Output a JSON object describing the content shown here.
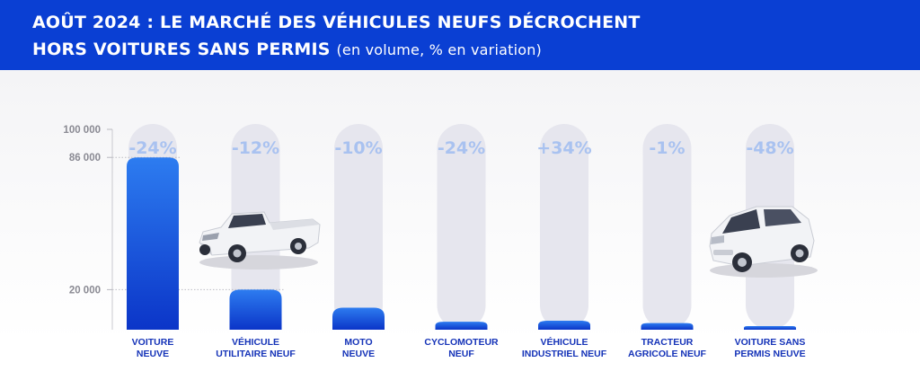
{
  "header": {
    "title_line1": "AOÛT 2024 : LE MARCHÉ DES VÉHICULES NEUFS DÉCROCHENT",
    "title_line2": "HORS VOITURES SANS PERMIS",
    "subtitle": "(en volume, % en variation)"
  },
  "colors": {
    "header_bg": "#0a3fd3",
    "bar_top": "#2d7cf0",
    "bar_bottom": "#0b35c8",
    "pill": "#e6e6ee",
    "pct_text": "#a9c2f0",
    "category_text": "#1533b8",
    "tick_text": "#8a8a93"
  },
  "icons": {
    "pickup": "pickup-truck-icon",
    "microcar": "microcar-icon"
  },
  "chart_data": {
    "type": "bar",
    "title": "AOÛT 2024 : LE MARCHÉ DES VÉHICULES NEUFS DÉCROCHENT HORS VOITURES SANS PERMIS",
    "subtitle": "(en volume, % en variation)",
    "xlabel": "",
    "ylabel": "",
    "ylim": [
      0,
      100000
    ],
    "yticks": [
      {
        "value": 100000,
        "label": "100 000"
      },
      {
        "value": 86000,
        "label": "86 000"
      },
      {
        "value": 20000,
        "label": "20 000"
      }
    ],
    "grid": false,
    "legend": "none",
    "categories": [
      {
        "line1": "VOITURE",
        "line2": "NEUVE"
      },
      {
        "line1": "VÉHICULE",
        "line2": "UTILITAIRE NEUF"
      },
      {
        "line1": "MOTO",
        "line2": "NEUVE"
      },
      {
        "line1": "CYCLOMOTEUR",
        "line2": "NEUF"
      },
      {
        "line1": "VÉHICULE",
        "line2": "INDUSTRIEL NEUF"
      },
      {
        "line1": "TRACTEUR",
        "line2": "AGRICOLE NEUF"
      },
      {
        "line1": "VOITURE SANS",
        "line2": "PERMIS NEUVE"
      }
    ],
    "values": [
      86000,
      20000,
      11000,
      4000,
      4500,
      3300,
      1600
    ],
    "variations": [
      "-24%",
      "-12%",
      "-10%",
      "-24%",
      "+34%",
      "-1%",
      "-48%"
    ]
  }
}
